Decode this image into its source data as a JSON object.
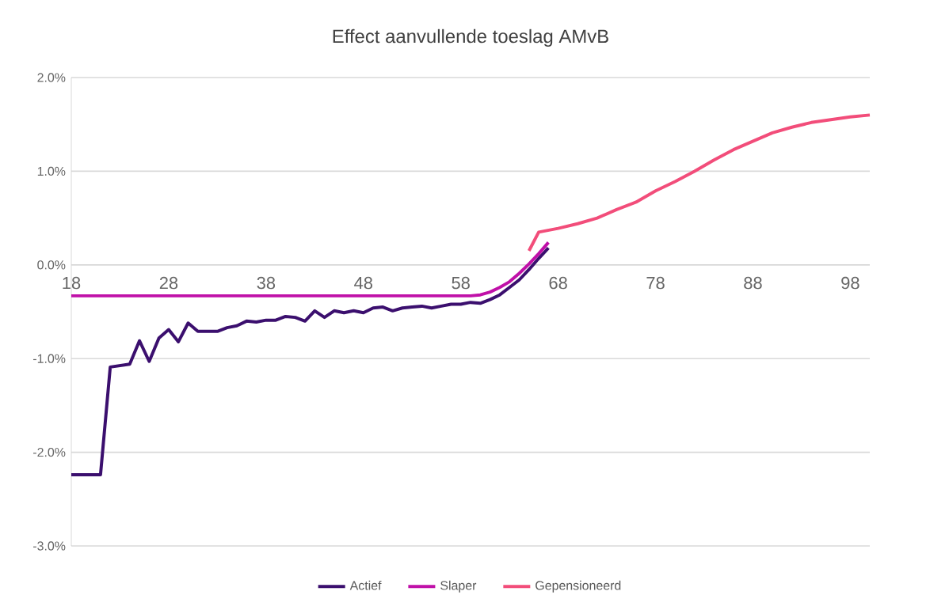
{
  "chart_data": {
    "type": "line",
    "title": "Effect aanvullende toeslag AMvB",
    "xlim": [
      18,
      100
    ],
    "xticks": [
      18,
      28,
      38,
      48,
      58,
      68,
      78,
      88,
      98
    ],
    "ylim": [
      -3,
      2
    ],
    "yticks": [
      {
        "value": 2,
        "label": "2.0%"
      },
      {
        "value": 1,
        "label": "1.0%"
      },
      {
        "value": 0,
        "label": "0.0%"
      },
      {
        "value": -1,
        "label": "-1.0%"
      },
      {
        "value": -2,
        "label": "-2.0%"
      },
      {
        "value": -3,
        "label": "-3.0%"
      }
    ],
    "grid": "y",
    "legend": "bottom",
    "marker": "none",
    "line_style": "solid",
    "series": [
      {
        "name": "Actief",
        "color": "#3b0f6e",
        "x": [
          18,
          21,
          22,
          24,
          25,
          26,
          27,
          28,
          29,
          30,
          31,
          33,
          34,
          35,
          36,
          37,
          38,
          39,
          40,
          41,
          42,
          43,
          44,
          45,
          46,
          47,
          48,
          49,
          50,
          51,
          52,
          53,
          54,
          55,
          56,
          57,
          58,
          59,
          60,
          61,
          62,
          63,
          64,
          65,
          66,
          67
        ],
        "values": [
          -2.24,
          -2.24,
          -1.09,
          -1.06,
          -0.81,
          -1.03,
          -0.78,
          -0.69,
          -0.82,
          -0.62,
          -0.71,
          -0.71,
          -0.67,
          -0.65,
          -0.6,
          -0.61,
          -0.59,
          -0.59,
          -0.55,
          -0.56,
          -0.6,
          -0.49,
          -0.56,
          -0.49,
          -0.51,
          -0.49,
          -0.51,
          -0.46,
          -0.45,
          -0.49,
          -0.46,
          -0.45,
          -0.44,
          -0.46,
          -0.44,
          -0.42,
          -0.42,
          -0.4,
          -0.41,
          -0.37,
          -0.32,
          -0.24,
          -0.16,
          -0.05,
          0.07,
          0.18
        ]
      },
      {
        "name": "Slaper",
        "color": "#c010a8",
        "x": [
          18,
          59,
          60,
          61,
          62,
          63,
          64,
          65,
          66,
          67
        ],
        "values": [
          -0.33,
          -0.33,
          -0.32,
          -0.29,
          -0.24,
          -0.18,
          -0.09,
          0.01,
          0.12,
          0.24
        ]
      },
      {
        "name": "Gepensioneerd",
        "color": "#f24d7a",
        "x": [
          65,
          66,
          68,
          70,
          72,
          74,
          76,
          78,
          80,
          82,
          84,
          86,
          88,
          90,
          92,
          94,
          96,
          98,
          100
        ],
        "values": [
          0.15,
          0.35,
          0.39,
          0.44,
          0.5,
          0.59,
          0.67,
          0.79,
          0.89,
          1.0,
          1.12,
          1.23,
          1.32,
          1.41,
          1.47,
          1.52,
          1.55,
          1.58,
          1.6
        ]
      }
    ]
  }
}
